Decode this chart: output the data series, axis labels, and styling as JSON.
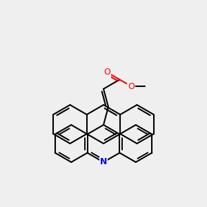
{
  "bg_color": "#efefef",
  "bond_color": "#000000",
  "n_color": "#0000ff",
  "o_color": "#ff0000",
  "lw": 1.5,
  "atoms": {
    "N": {
      "color": "#0000ff",
      "fontsize": 9
    },
    "O": {
      "color": "#ff0000",
      "fontsize": 9
    }
  }
}
